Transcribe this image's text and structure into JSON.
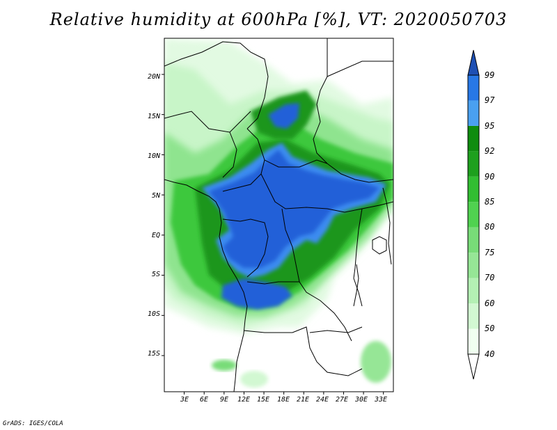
{
  "title": "Relative humidity at 600hPa [%], VT: 2020050703",
  "footer": "GrADS: IGES/COLA",
  "latitude_labels": [
    "20N",
    "15N",
    "10N",
    "5N",
    "EQ",
    "5S",
    "10S",
    "15S"
  ],
  "latitude_values": [
    20,
    15,
    10,
    5,
    0,
    -5,
    -10,
    -15
  ],
  "longitude_labels": [
    "3E",
    "6E",
    "9E",
    "12E",
    "15E",
    "18E",
    "21E",
    "24E",
    "27E",
    "30E",
    "33E"
  ],
  "longitude_values": [
    3,
    6,
    9,
    12,
    15,
    18,
    21,
    24,
    27,
    30,
    33
  ],
  "colorbar": {
    "levels": [
      "40",
      "50",
      "60",
      "70",
      "75",
      "80",
      "85",
      "90",
      "92",
      "95",
      "97",
      "99"
    ],
    "colors": [
      "#f0fff0",
      "#d2f8d2",
      "#b4f0b4",
      "#96e696",
      "#78dc78",
      "#50d250",
      "#32be32",
      "#1ea01e",
      "#0f8c0f",
      "#4aa0f0",
      "#2878e6",
      "#1e50b4"
    ],
    "low_color": "#ffffff",
    "high_color": "#1e50b4"
  },
  "map": {
    "lon_range": [
      0,
      34.5
    ],
    "lat_range": [
      -19.5,
      24.5
    ],
    "land_fill": "#ffffff",
    "boundary_color": "#000000"
  }
}
